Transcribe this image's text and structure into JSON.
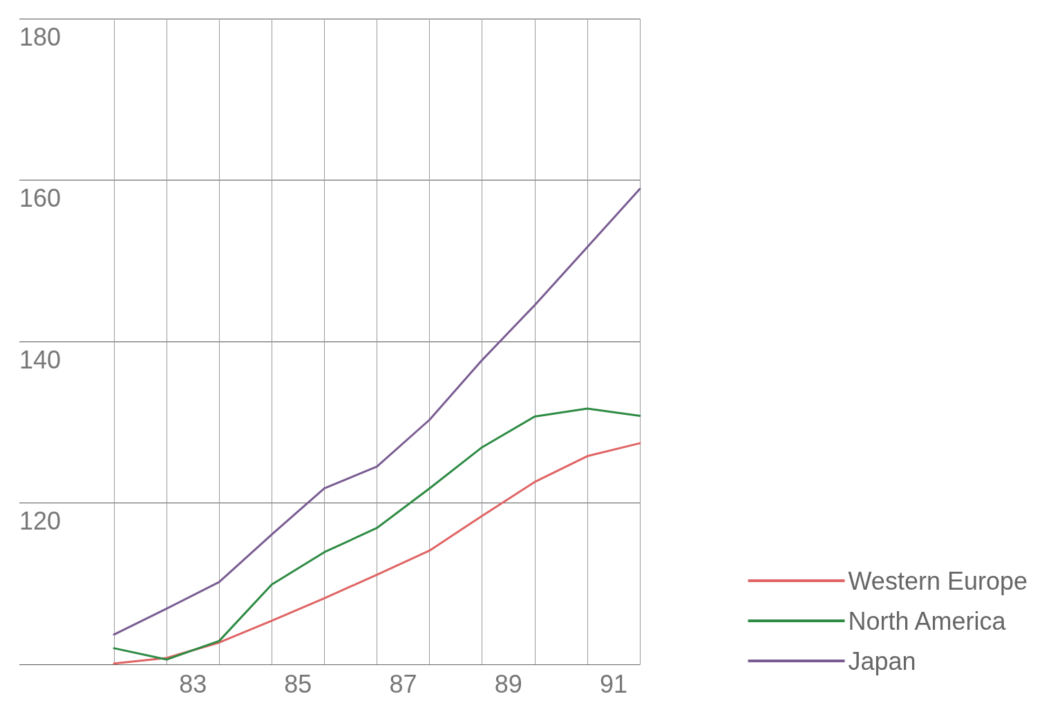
{
  "chart_data": {
    "type": "line",
    "x": [
      81.5,
      82.5,
      83.5,
      84.5,
      85.5,
      86.5,
      87.5,
      88.5,
      89.5,
      90.5,
      91.5
    ],
    "series": [
      {
        "name": "Western Europe",
        "color": "#e06464",
        "values": [
          100.1,
          100.8,
          102.7,
          105.4,
          108.2,
          111.1,
          114.1,
          118.4,
          122.6,
          125.8,
          127.4
        ]
      },
      {
        "name": "North America",
        "color": "#2e8b44",
        "values": [
          102.0,
          100.6,
          102.9,
          109.9,
          113.9,
          116.9,
          121.8,
          126.9,
          130.7,
          131.7,
          130.8
        ]
      },
      {
        "name": "Japan",
        "color": "#7a5c92",
        "values": [
          103.7,
          106.9,
          110.2,
          116.1,
          121.8,
          124.5,
          130.3,
          137.7,
          144.5,
          151.7,
          158.9
        ]
      }
    ],
    "xlim": [
      81.5,
      91.5
    ],
    "xticks": [
      {
        "value": 81.5,
        "label": null
      },
      {
        "value": 82.5,
        "label": null
      },
      83,
      {
        "value": 83.5,
        "label": null
      },
      {
        "value": 84.5,
        "label": null
      },
      85,
      {
        "value": 85.5,
        "label": null
      },
      {
        "value": 86.5,
        "label": null
      },
      87,
      {
        "value": 87.5,
        "label": null
      },
      {
        "value": 88.5,
        "label": null
      },
      89,
      {
        "value": 89.5,
        "label": null
      },
      {
        "value": 90.5,
        "label": null
      },
      91,
      {
        "value": 91.5,
        "label": null
      }
    ],
    "ylim": [
      100,
      180
    ],
    "yticks": [
      {
        "value": 100,
        "label": null
      },
      120,
      140,
      160,
      180
    ],
    "grid": true,
    "legend": "bottom right",
    "marker": "none",
    "line_style": "solid"
  }
}
